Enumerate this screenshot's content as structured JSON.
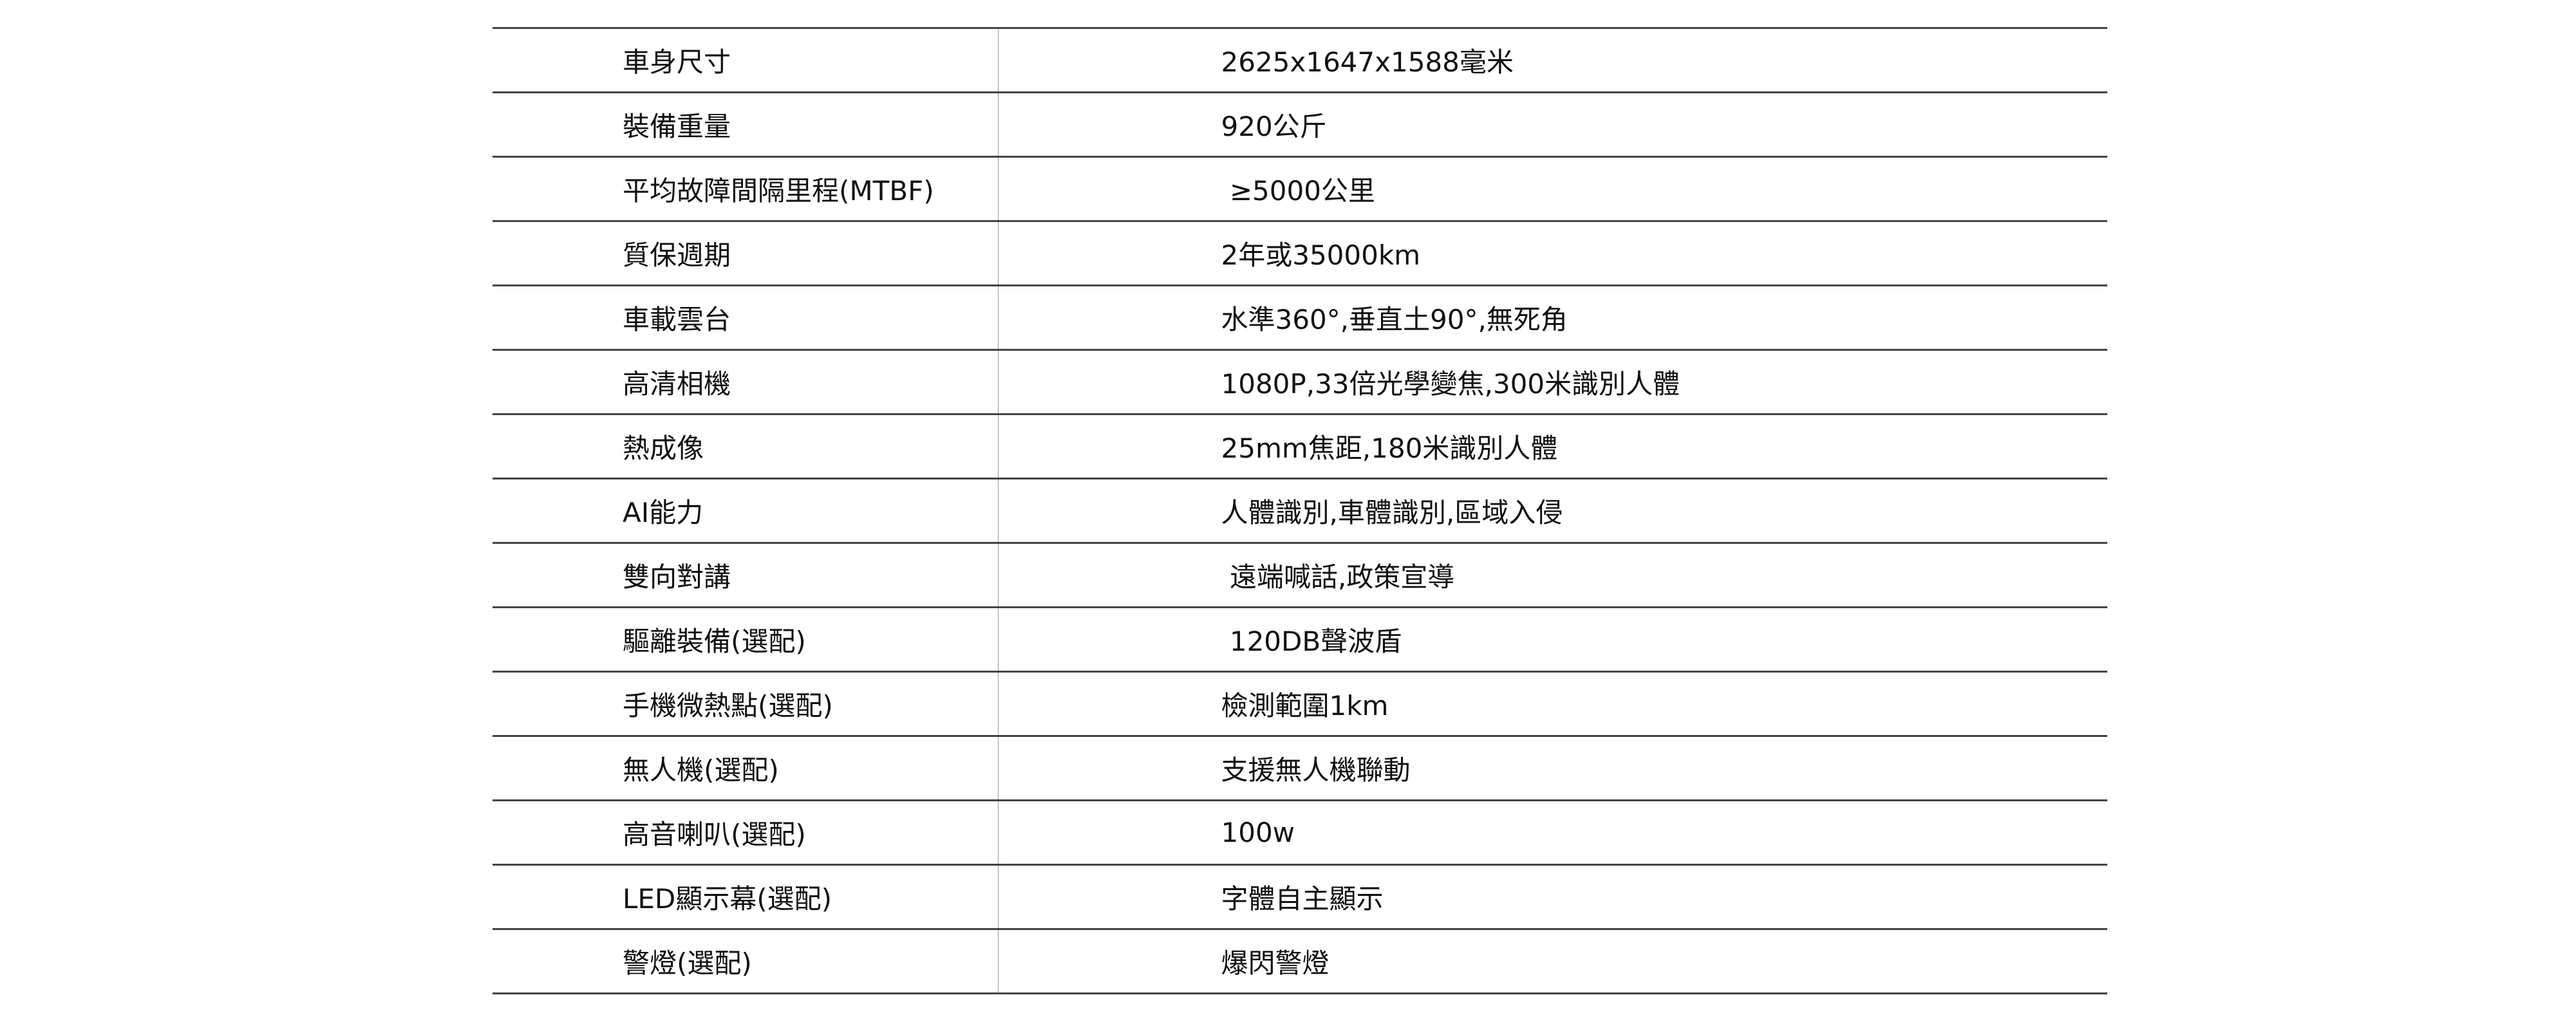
{
  "specs": [
    {
      "label": "車身尺寸",
      "value": "2625x1647x1588毫米"
    },
    {
      "label": "裝備重量",
      "value": "920公斤"
    },
    {
      "label": "平均故障間隔里程(MTBF)",
      "value": " ≥5000公里"
    },
    {
      "label": "質保週期",
      "value": "2年或35000km"
    },
    {
      "label": "車載雲台",
      "value": "水準360°,垂直土90°,無死角"
    },
    {
      "label": "高清相機",
      "value": "1080P,33倍光學變焦,300米識別人體"
    },
    {
      "label": "熱成像",
      "value": "25mm焦距,180米識別人體"
    },
    {
      "label": "AI能力",
      "value": "人體識別,車體識別,區域入侵"
    },
    {
      "label": "雙向對講",
      "value": " 遠端喊話,政策宣導"
    },
    {
      "label": "驅離裝備(選配)",
      "value": " 120DB聲波盾"
    },
    {
      "label": "手機微熱點(選配)",
      "value": "檢測範圍1km"
    },
    {
      "label": "無人機(選配)",
      "value": "支援無人機聯動"
    },
    {
      "label": "高音喇叭(選配)",
      "value": "100w"
    },
    {
      "label": "LED顯示幕(選配)",
      "value": "字體自主顯示"
    },
    {
      "label": "警燈(選配)",
      "value": "爆閃警燈"
    }
  ]
}
